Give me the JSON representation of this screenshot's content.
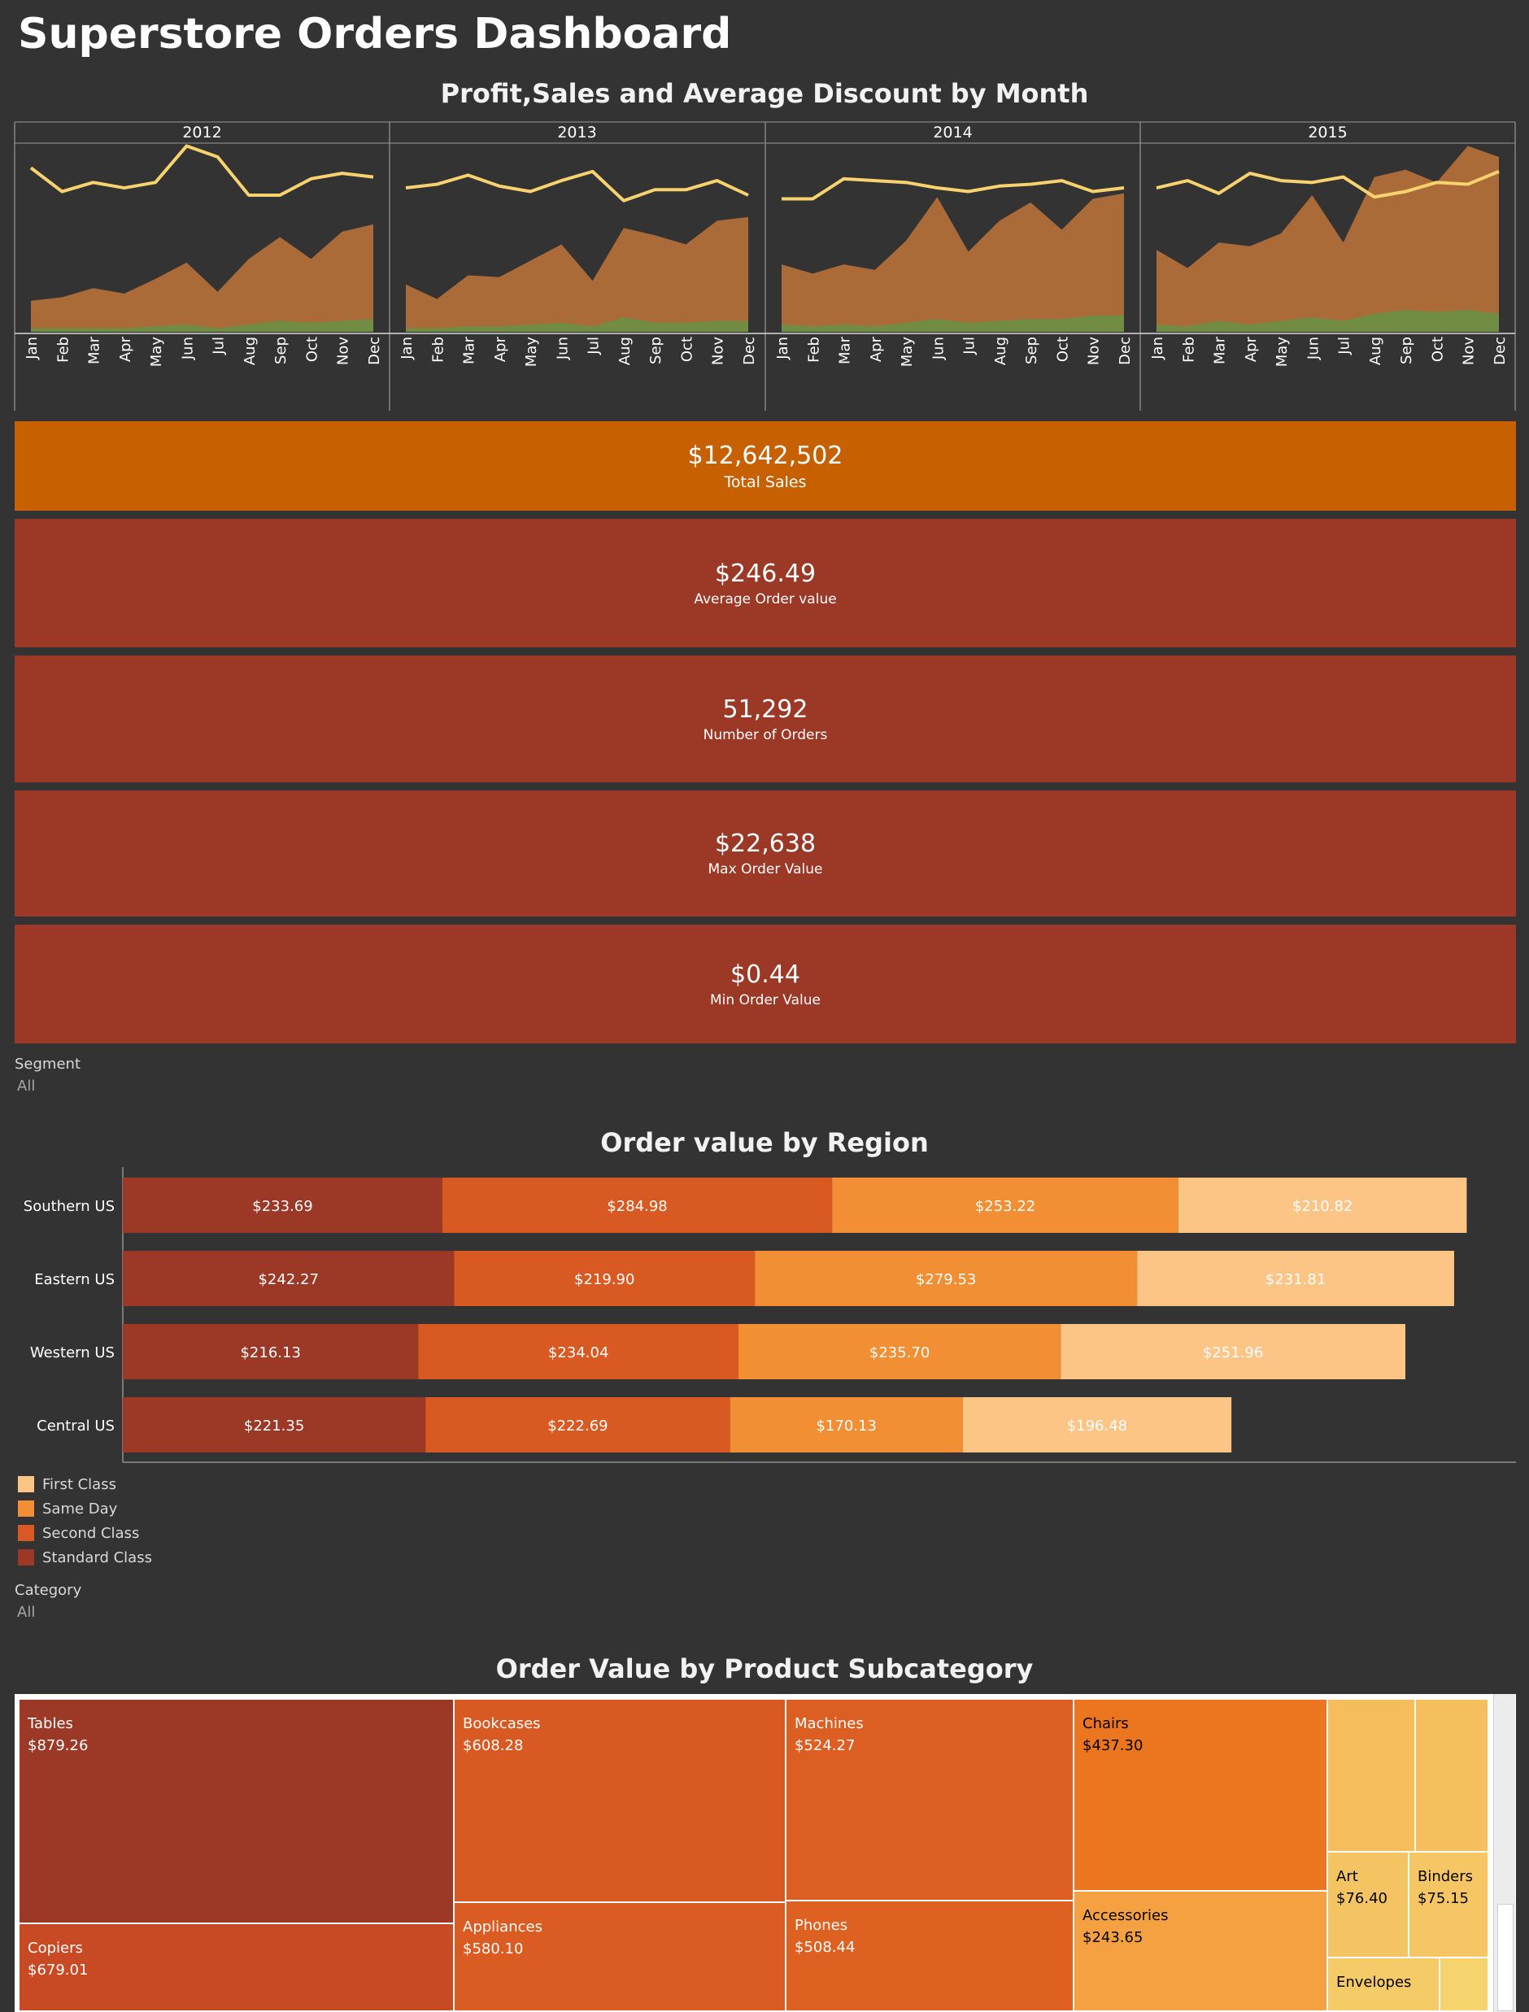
{
  "title": "Superstore Orders Dashboard",
  "line_chart": {
    "title": "Profit,Sales and Average Discount by Month",
    "years": [
      "2012",
      "2013",
      "2014",
      "2015"
    ],
    "months": [
      "Jan",
      "Feb",
      "Mar",
      "Apr",
      "May",
      "Jun",
      "Jul",
      "Aug",
      "Sep",
      "Oct",
      "Nov",
      "Dec"
    ]
  },
  "kpis": {
    "total_sales": {
      "value": "$12,642,502",
      "label": "Total Sales"
    },
    "avg_order": {
      "value": "$246.49",
      "label": "Average Order value"
    },
    "num_orders": {
      "value": "51,292",
      "label": "Number of Orders"
    },
    "max_order": {
      "value": "$22,638",
      "label": "Max Order Value"
    },
    "min_order": {
      "value": "$0.44",
      "label": "Min Order Value"
    }
  },
  "segment_filter": {
    "label": "Segment",
    "value": "All"
  },
  "bar_chart": {
    "title": "Order value by Region"
  },
  "legend": [
    "First Class",
    "Same Day",
    "Second Class",
    "Standard Class"
  ],
  "category_filter": {
    "label": "Category",
    "value": "All"
  },
  "treemap": {
    "title": "Order Value by Product Subcategory",
    "cells": [
      {
        "name": "Tables",
        "value": "$879.26"
      },
      {
        "name": "Copiers",
        "value": "$679.01"
      },
      {
        "name": "Bookcases",
        "value": "$608.28"
      },
      {
        "name": "Appliances",
        "value": "$580.10"
      },
      {
        "name": "Machines",
        "value": "$524.27"
      },
      {
        "name": "Phones",
        "value": "$508.44"
      },
      {
        "name": "Chairs",
        "value": "$437.30"
      },
      {
        "name": "Accessories",
        "value": "$243.65"
      },
      {
        "name": "Art",
        "value": "$76.40"
      },
      {
        "name": "Binders",
        "value": "$75.15"
      },
      {
        "name": "Envelopes",
        "value": ""
      }
    ]
  },
  "colors": {
    "background": "#333333",
    "sales_area": "#b5703a",
    "profit_area": "#6e8f45",
    "discount_line": "#f7d26e",
    "first_class": "#fdc585",
    "same_day": "#f28e33",
    "second_class": "#d85a22",
    "standard_class": "#9c3826",
    "total_sales_bg": "#c66000",
    "kpi_bg": "#9c3826"
  },
  "chart_data": [
    {
      "type": "area",
      "title": "Profit,Sales and Average Discount by Month",
      "x": [
        "2012-Jan",
        "2012-Feb",
        "2012-Mar",
        "2012-Apr",
        "2012-May",
        "2012-Jun",
        "2012-Jul",
        "2012-Aug",
        "2012-Sep",
        "2012-Oct",
        "2012-Nov",
        "2012-Dec",
        "2013-Jan",
        "2013-Feb",
        "2013-Mar",
        "2013-Apr",
        "2013-May",
        "2013-Jun",
        "2013-Jul",
        "2013-Aug",
        "2013-Sep",
        "2013-Oct",
        "2013-Nov",
        "2013-Dec",
        "2014-Jan",
        "2014-Feb",
        "2014-Mar",
        "2014-Apr",
        "2014-May",
        "2014-Jun",
        "2014-Jul",
        "2014-Aug",
        "2014-Sep",
        "2014-Oct",
        "2014-Nov",
        "2014-Dec",
        "2015-Jan",
        "2015-Feb",
        "2015-Mar",
        "2015-Apr",
        "2015-May",
        "2015-Jun",
        "2015-Jul",
        "2015-Aug",
        "2015-Sep",
        "2015-Oct",
        "2015-Nov",
        "2015-Dec"
      ],
      "series": [
        {
          "values": [
            0.17,
            0.19,
            0.24,
            0.21,
            0.29,
            0.38,
            0.22,
            0.4,
            0.52,
            0.4,
            0.55,
            0.59,
            0.26,
            0.18,
            0.31,
            0.3,
            0.39,
            0.48,
            0.28,
            0.57,
            0.53,
            0.48,
            0.61,
            0.63,
            0.37,
            0.32,
            0.37,
            0.34,
            0.5,
            0.74,
            0.44,
            0.61,
            0.71,
            0.56,
            0.73,
            0.76,
            0.45,
            0.35,
            0.49,
            0.47,
            0.54,
            0.75,
            0.49,
            0.85,
            0.89,
            0.82,
            1.02,
            0.96
          ]
        },
        {
          "values": [
            0.02,
            0.02,
            0.02,
            0.02,
            0.03,
            0.04,
            0.02,
            0.04,
            0.06,
            0.05,
            0.06,
            0.07,
            0.02,
            0.02,
            0.03,
            0.03,
            0.04,
            0.05,
            0.03,
            0.08,
            0.05,
            0.05,
            0.06,
            0.06,
            0.04,
            0.03,
            0.04,
            0.03,
            0.05,
            0.07,
            0.05,
            0.06,
            0.07,
            0.07,
            0.09,
            0.09,
            0.04,
            0.03,
            0.06,
            0.04,
            0.06,
            0.08,
            0.06,
            0.1,
            0.12,
            0.11,
            0.12,
            0.1
          ]
        },
        {
          "values": [
            0.9,
            0.77,
            0.82,
            0.79,
            0.82,
            1.02,
            0.96,
            0.75,
            0.75,
            0.84,
            0.87,
            0.85,
            0.79,
            0.81,
            0.86,
            0.8,
            0.77,
            0.83,
            0.88,
            0.72,
            0.78,
            0.78,
            0.83,
            0.75,
            0.73,
            0.73,
            0.84,
            0.83,
            0.82,
            0.79,
            0.77,
            0.8,
            0.81,
            0.83,
            0.77,
            0.79,
            0.79,
            0.83,
            0.76,
            0.87,
            0.83,
            0.82,
            0.85,
            0.74,
            0.77,
            0.82,
            0.81,
            0.88
          ]
        }
      ]
    },
    {
      "type": "bar",
      "title": "Order value by Region",
      "categories": [
        "Southern US",
        "Eastern US",
        "Western US",
        "Central US"
      ],
      "series": [
        {
          "name": "Standard Class",
          "values": [
            233.69,
            242.27,
            216.13,
            221.35
          ]
        },
        {
          "name": "Second Class",
          "values": [
            284.98,
            219.9,
            234.04,
            222.69
          ]
        },
        {
          "name": "Same Day",
          "values": [
            253.22,
            279.53,
            235.7,
            170.13
          ]
        },
        {
          "name": "First Class",
          "values": [
            210.82,
            231.81,
            251.96,
            196.48
          ]
        }
      ],
      "stacked": true,
      "orientation": "horizontal"
    },
    {
      "type": "heatmap",
      "title": "Order Value by Product Subcategory",
      "categories": [
        "Tables",
        "Copiers",
        "Bookcases",
        "Appliances",
        "Machines",
        "Phones",
        "Chairs",
        "Accessories",
        "Art",
        "Binders",
        "Envelopes"
      ],
      "values": [
        879.26,
        679.01,
        608.28,
        580.1,
        524.27,
        508.44,
        437.3,
        243.65,
        76.4,
        75.15,
        null
      ]
    }
  ]
}
